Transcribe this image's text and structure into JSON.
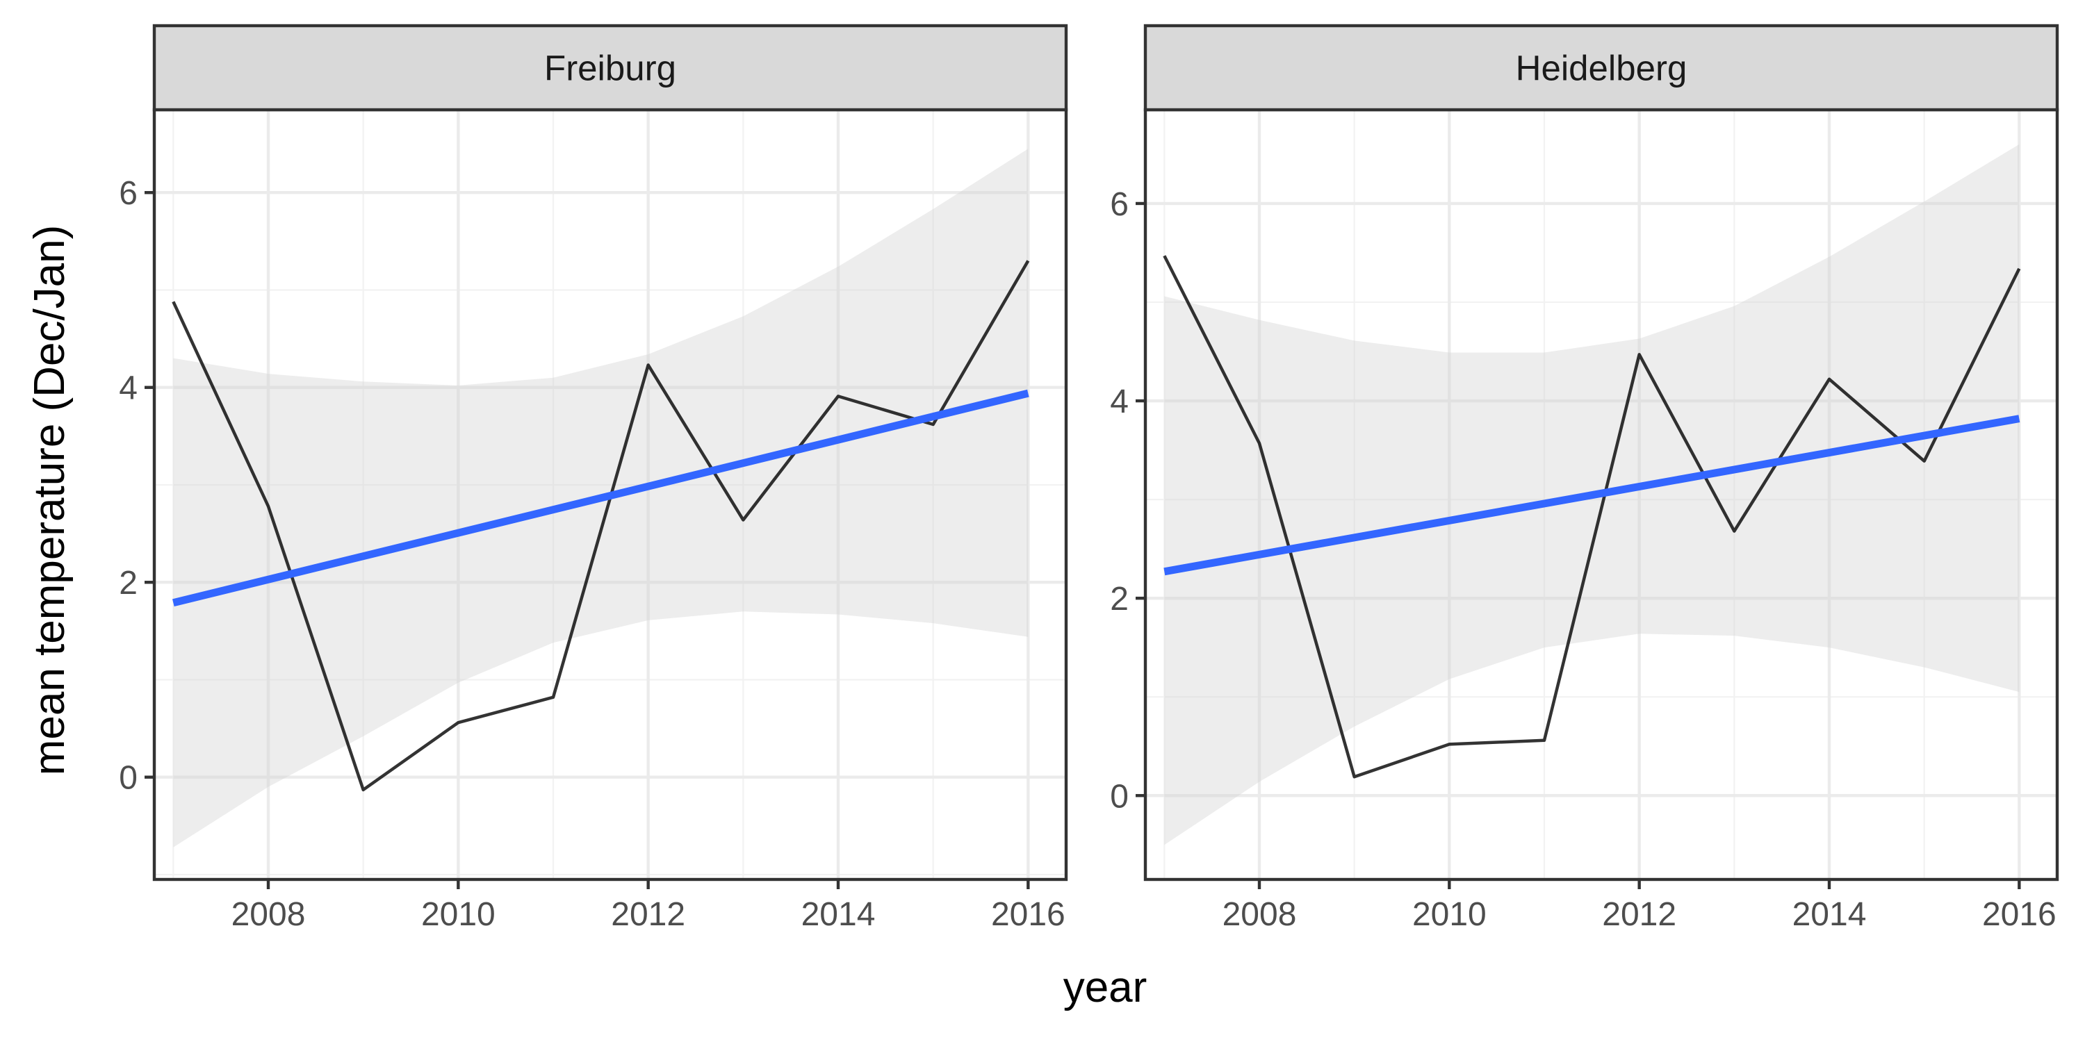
{
  "chart_data": {
    "type": "line",
    "xlabel": "year",
    "ylabel": "mean temperature (Dec/Jan)",
    "grid": true,
    "facets": [
      {
        "title": "Freiburg",
        "xlim": [
          2006.8,
          2016.4
        ],
        "ylim": [
          -1.05,
          6.85
        ],
        "x_ticks": [
          2008,
          2010,
          2012,
          2014,
          2016
        ],
        "y_ticks": [
          0,
          2,
          4,
          6
        ],
        "series": [
          {
            "name": "mean temperature",
            "color": "#333333",
            "x": [
              2007,
              2008,
              2009,
              2010,
              2011,
              2012,
              2013,
              2014,
              2015,
              2016
            ],
            "y": [
              4.88,
              2.78,
              -0.13,
              0.56,
              0.82,
              4.23,
              2.64,
              3.91,
              3.62,
              5.3
            ]
          },
          {
            "name": "linear fit",
            "color": "#3366FF",
            "x": [
              2007,
              2016
            ],
            "y": [
              1.79,
              3.94
            ]
          }
        ],
        "confidence_band": {
          "color": "#d3d3d3",
          "x": [
            2007,
            2008,
            2009,
            2010,
            2011,
            2012,
            2013,
            2014,
            2015,
            2016
          ],
          "lower": [
            -0.72,
            -0.1,
            0.42,
            0.97,
            1.38,
            1.61,
            1.7,
            1.67,
            1.58,
            1.44
          ],
          "upper": [
            4.3,
            4.14,
            4.06,
            4.02,
            4.1,
            4.34,
            4.73,
            5.24,
            5.83,
            6.45
          ]
        }
      },
      {
        "title": "Heidelberg",
        "xlim": [
          2006.8,
          2016.4
        ],
        "ylim": [
          -0.85,
          6.95
        ],
        "x_ticks": [
          2008,
          2010,
          2012,
          2014,
          2016
        ],
        "y_ticks": [
          0,
          2,
          4,
          6
        ],
        "series": [
          {
            "name": "mean temperature",
            "color": "#333333",
            "x": [
              2007,
              2008,
              2009,
              2010,
              2011,
              2012,
              2013,
              2014,
              2015,
              2016
            ],
            "y": [
              5.47,
              3.57,
              0.19,
              0.52,
              0.56,
              4.47,
              2.68,
              4.22,
              3.39,
              5.34
            ]
          },
          {
            "name": "linear fit",
            "color": "#3366FF",
            "x": [
              2007,
              2016
            ],
            "y": [
              2.27,
              3.82
            ]
          }
        ],
        "confidence_band": {
          "color": "#d3d3d3",
          "x": [
            2007,
            2008,
            2009,
            2010,
            2011,
            2012,
            2013,
            2014,
            2015,
            2016
          ],
          "lower": [
            -0.5,
            0.14,
            0.7,
            1.18,
            1.5,
            1.64,
            1.62,
            1.5,
            1.3,
            1.05
          ],
          "upper": [
            5.06,
            4.82,
            4.61,
            4.49,
            4.49,
            4.63,
            4.96,
            5.46,
            6.02,
            6.6
          ]
        }
      }
    ]
  }
}
